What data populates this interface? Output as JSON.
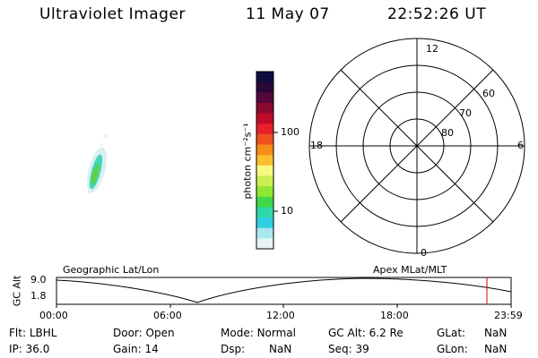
{
  "header": {
    "instrument": "Ultraviolet Imager",
    "date": "11 May 07",
    "time": "22:52:26 UT"
  },
  "colorbar": {
    "unit_label": "photon cm⁻²s⁻¹",
    "ticks": [
      "100",
      "10"
    ],
    "colors": [
      "#0d0d40",
      "#2a0838",
      "#55063c",
      "#8a0a2e",
      "#c00a28",
      "#e8202a",
      "#f0501e",
      "#f88c18",
      "#f8c02c",
      "#f8f880",
      "#c8f050",
      "#90e830",
      "#40d848",
      "#30d8a8",
      "#30d0e0",
      "#a8e8ec",
      "#e8f4f4"
    ]
  },
  "polar": {
    "mlt_labels": {
      "top": "12",
      "bottom": "0",
      "left": "18",
      "right": "6"
    },
    "lat_labels": [
      "60",
      "70",
      "80"
    ]
  },
  "timeline": {
    "left_label": "Geographic Lat/Lon",
    "right_label": "Apex MLat/MLT",
    "y_axis_label": "GC Alt",
    "y_max": "9.0",
    "y_min": "1.8",
    "x_ticks": [
      "00:00",
      "06:00",
      "12:00",
      "18:00",
      "23:59"
    ],
    "marker_color": "#cc0000"
  },
  "info": {
    "row1": {
      "flt_label": "Flt:",
      "flt_value": "LBHL",
      "door_label": "Door:",
      "door_value": "Open",
      "mode_label": "Mode:",
      "mode_value": "Normal",
      "gcalt_label": "GC Alt:",
      "gcalt_value": "6.2 Re",
      "glat_label": "GLat:",
      "glat_value": "NaN"
    },
    "row2": {
      "ip_label": "IP:",
      "ip_value": "36.0",
      "gain_label": "Gain:",
      "gain_value": "14",
      "dsp_label": "Dsp:",
      "dsp_value": "NaN",
      "seq_label": "Seq:",
      "seq_value": "39",
      "glon_label": "GLon:",
      "glon_value": "NaN"
    }
  }
}
